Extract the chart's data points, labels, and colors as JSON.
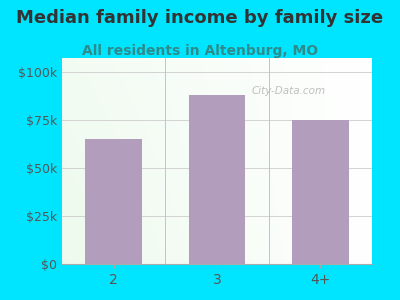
{
  "title": "Median family income by family size",
  "subtitle": "All residents in Altenburg, MO",
  "categories": [
    "2",
    "3",
    "4+"
  ],
  "values": [
    65000,
    88000,
    75000
  ],
  "bar_color": "#b39dbd",
  "background_color": "#00e5ff",
  "title_color": "#333333",
  "subtitle_color": "#2e8b8b",
  "ytick_color": "#555555",
  "xtick_color": "#555555",
  "ytick_labels": [
    "$0",
    "$25k",
    "$50k",
    "$75k",
    "$100k"
  ],
  "ytick_values": [
    0,
    25000,
    50000,
    75000,
    100000
  ],
  "ylim": [
    0,
    107000
  ],
  "title_fontsize": 13,
  "subtitle_fontsize": 10,
  "tick_fontsize": 9,
  "watermark": "City-Data.com"
}
